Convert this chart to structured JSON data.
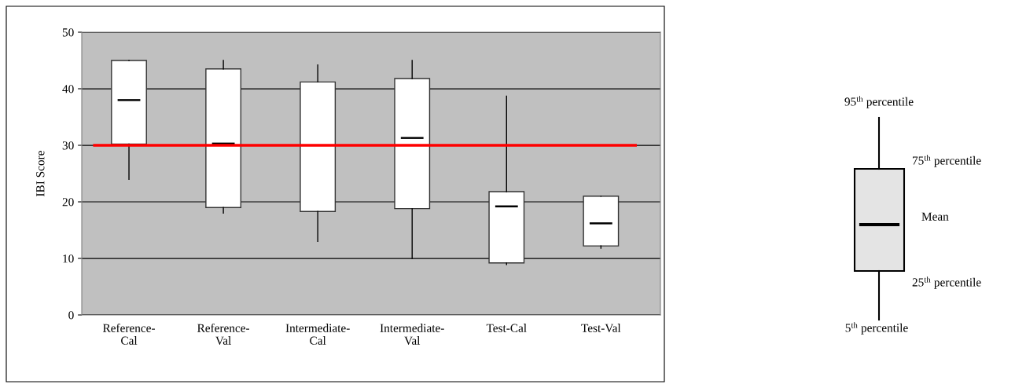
{
  "chart_data": {
    "type": "box",
    "ylabel": "IBI Score",
    "categories": [
      "Reference-\nCal",
      "Reference-\nVal",
      "Intermediate-\nCal",
      "Intermediate-\nVal",
      "Test-Cal",
      "Test-Val"
    ],
    "boxes": [
      {
        "low": 24,
        "q1": 30.2,
        "q3": 45,
        "high": 45,
        "mean": 38
      },
      {
        "low": 18,
        "q1": 19,
        "q3": 43.5,
        "high": 45,
        "mean": 30.3
      },
      {
        "low": 13,
        "q1": 18.3,
        "q3": 41.2,
        "high": 44.2
      },
      {
        "low": 10,
        "q1": 18.8,
        "q3": 41.8,
        "high": 45,
        "mean": 31.3
      },
      {
        "low": 8.9,
        "q1": 9.2,
        "q3": 21.8,
        "high": 38.7,
        "mean": 19.2
      },
      {
        "low": 11.8,
        "q1": 12.2,
        "q3": 21,
        "high": 21,
        "mean": 16.2
      }
    ],
    "color": "#ffffff",
    "ylim": [
      0,
      50
    ],
    "yticks": [
      0,
      10,
      20,
      30,
      40,
      50
    ],
    "grid": "y",
    "ref_lines": [
      {
        "axis": "y",
        "value": 30,
        "color": "#ff0000"
      }
    ],
    "annotations": [
      "95$^{th}$ percentile",
      "75$^{th}$ percentile",
      "Mean",
      "25$^{th}$ percentile",
      "5$^{th}$ percentile"
    ]
  }
}
